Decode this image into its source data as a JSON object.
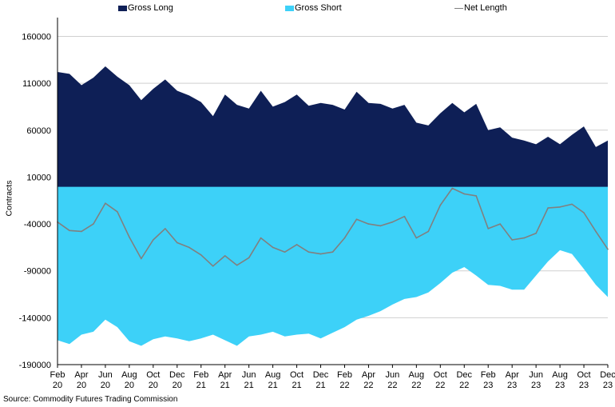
{
  "chart_data": {
    "type": "area",
    "title": "",
    "ylabel": "Contracts",
    "xlabel": "",
    "ylim": [
      -190000,
      180000
    ],
    "yticks": [
      160000,
      110000,
      60000,
      10000,
      -40000,
      -90000,
      -140000,
      -190000
    ],
    "ytick_labels": [
      "160000",
      "110000",
      "60000",
      "10000",
      "-40000",
      "-90000",
      "-140000",
      "-190000"
    ],
    "grid": true,
    "legend_position": "top",
    "x_start": "2020-02",
    "x_end": "2023-12",
    "xtick_labels": [
      {
        "month": "Feb",
        "year": "20"
      },
      {
        "month": "Apr",
        "year": "20"
      },
      {
        "month": "Jun",
        "year": "20"
      },
      {
        "month": "Aug",
        "year": "20"
      },
      {
        "month": "Oct",
        "year": "20"
      },
      {
        "month": "Dec",
        "year": "20"
      },
      {
        "month": "Feb",
        "year": "21"
      },
      {
        "month": "Apr",
        "year": "21"
      },
      {
        "month": "Jun",
        "year": "21"
      },
      {
        "month": "Aug",
        "year": "21"
      },
      {
        "month": "Oct",
        "year": "21"
      },
      {
        "month": "Dec",
        "year": "21"
      },
      {
        "month": "Feb",
        "year": "22"
      },
      {
        "month": "Apr",
        "year": "22"
      },
      {
        "month": "Jun",
        "year": "22"
      },
      {
        "month": "Aug",
        "year": "22"
      },
      {
        "month": "Oct",
        "year": "22"
      },
      {
        "month": "Dec",
        "year": "22"
      },
      {
        "month": "Feb",
        "year": "23"
      },
      {
        "month": "Apr",
        "year": "23"
      },
      {
        "month": "Jun",
        "year": "23"
      },
      {
        "month": "Aug",
        "year": "23"
      },
      {
        "month": "Oct",
        "year": "23"
      },
      {
        "month": "Dec",
        "year": "23"
      }
    ],
    "x": [
      "2020-02",
      "2020-03",
      "2020-04",
      "2020-05",
      "2020-06",
      "2020-07",
      "2020-08",
      "2020-09",
      "2020-10",
      "2020-11",
      "2020-12",
      "2021-01",
      "2021-02",
      "2021-03",
      "2021-04",
      "2021-05",
      "2021-06",
      "2021-07",
      "2021-08",
      "2021-09",
      "2021-10",
      "2021-11",
      "2021-12",
      "2022-01",
      "2022-02",
      "2022-03",
      "2022-04",
      "2022-05",
      "2022-06",
      "2022-07",
      "2022-08",
      "2022-09",
      "2022-10",
      "2022-11",
      "2022-12",
      "2023-01",
      "2023-02",
      "2023-03",
      "2023-04",
      "2023-05",
      "2023-06",
      "2023-07",
      "2023-08",
      "2023-09",
      "2023-10",
      "2023-11",
      "2023-12"
    ],
    "series": [
      {
        "name": "Gross Long",
        "color": "#0e1f56",
        "values": [
          122000,
          120000,
          108000,
          116000,
          128000,
          117000,
          108000,
          92000,
          104000,
          114000,
          102000,
          97000,
          90000,
          75000,
          98000,
          87000,
          83000,
          102000,
          85000,
          90000,
          98000,
          86000,
          89000,
          87000,
          82000,
          101000,
          89000,
          88000,
          83000,
          87000,
          68000,
          65000,
          78000,
          89000,
          79000,
          88000,
          60000,
          63000,
          52000,
          49000,
          45000,
          53000,
          45000,
          55000,
          64000,
          42000,
          49000
        ]
      },
      {
        "name": "Gross Short",
        "color": "#3dd1f8",
        "values": [
          -164000,
          -168000,
          -158000,
          -155000,
          -142000,
          -150000,
          -165000,
          -170000,
          -163000,
          -160000,
          -162000,
          -165000,
          -162000,
          -158000,
          -164000,
          -170000,
          -160000,
          -158000,
          -155000,
          -160000,
          -158000,
          -157000,
          -162000,
          -156000,
          -150000,
          -142000,
          -138000,
          -133000,
          -126000,
          -120000,
          -118000,
          -113000,
          -103000,
          -92000,
          -86000,
          -95000,
          -105000,
          -106000,
          -110000,
          -110000,
          -95000,
          -80000,
          -68000,
          -72000,
          -88000,
          -105000,
          -118000
        ]
      },
      {
        "name": "Net Length",
        "color": "#808080",
        "values": [
          -38000,
          -47000,
          -48000,
          -40000,
          -18000,
          -27000,
          -54000,
          -77000,
          -57000,
          -45000,
          -60000,
          -65000,
          -73000,
          -85000,
          -74000,
          -84000,
          -76000,
          -55000,
          -65000,
          -70000,
          -62000,
          -70000,
          -72000,
          -70000,
          -55000,
          -35000,
          -40000,
          -42000,
          -38000,
          -32000,
          -55000,
          -48000,
          -20000,
          -2000,
          -8000,
          -10000,
          -45000,
          -40000,
          -57000,
          -55000,
          -50000,
          -23000,
          -22000,
          -19000,
          -28000,
          -48000,
          -67000
        ]
      }
    ]
  },
  "legend": {
    "items": [
      {
        "label": "Gross Long",
        "color": "#0e1f56"
      },
      {
        "label": "Gross Short",
        "color": "#3dd1f8"
      },
      {
        "label": "Net Length",
        "color": "#808080"
      }
    ]
  },
  "axis": {
    "ylabel": "Contracts"
  },
  "footer": {
    "source": "Source: Commodity Futures Trading Commission"
  }
}
